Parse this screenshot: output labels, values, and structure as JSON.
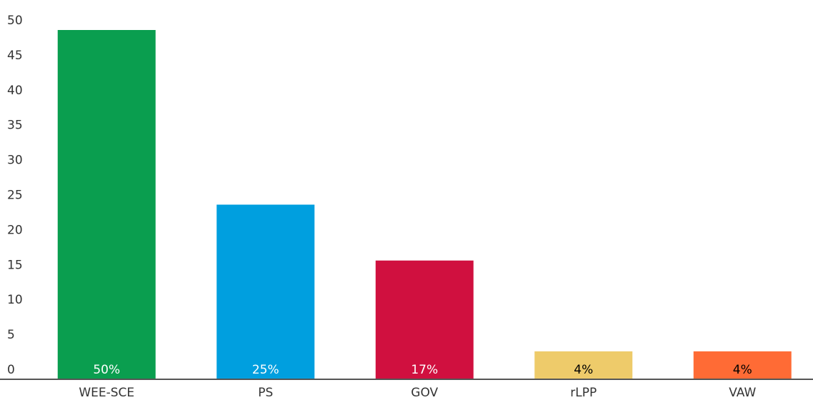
{
  "chart_data": {
    "type": "bar",
    "categories": [
      "WEE-SCE",
      "PS",
      "GOV",
      "rLPP",
      "VAW"
    ],
    "values": [
      50,
      25,
      17,
      4,
      4
    ],
    "value_labels": [
      "50%",
      "25%",
      "17%",
      "4%",
      "4%"
    ],
    "colors": [
      "#0a9e4f",
      "#009fdf",
      "#d0103f",
      "#eecb6a",
      "#ff6b35"
    ],
    "value_label_colors": [
      "#ffffff",
      "#ffffff",
      "#ffffff",
      "#000000",
      "#000000"
    ],
    "ylim": [
      0,
      50
    ],
    "yticks": [
      0,
      5,
      10,
      15,
      20,
      25,
      30,
      35,
      40,
      45,
      50
    ],
    "grid": false
  }
}
